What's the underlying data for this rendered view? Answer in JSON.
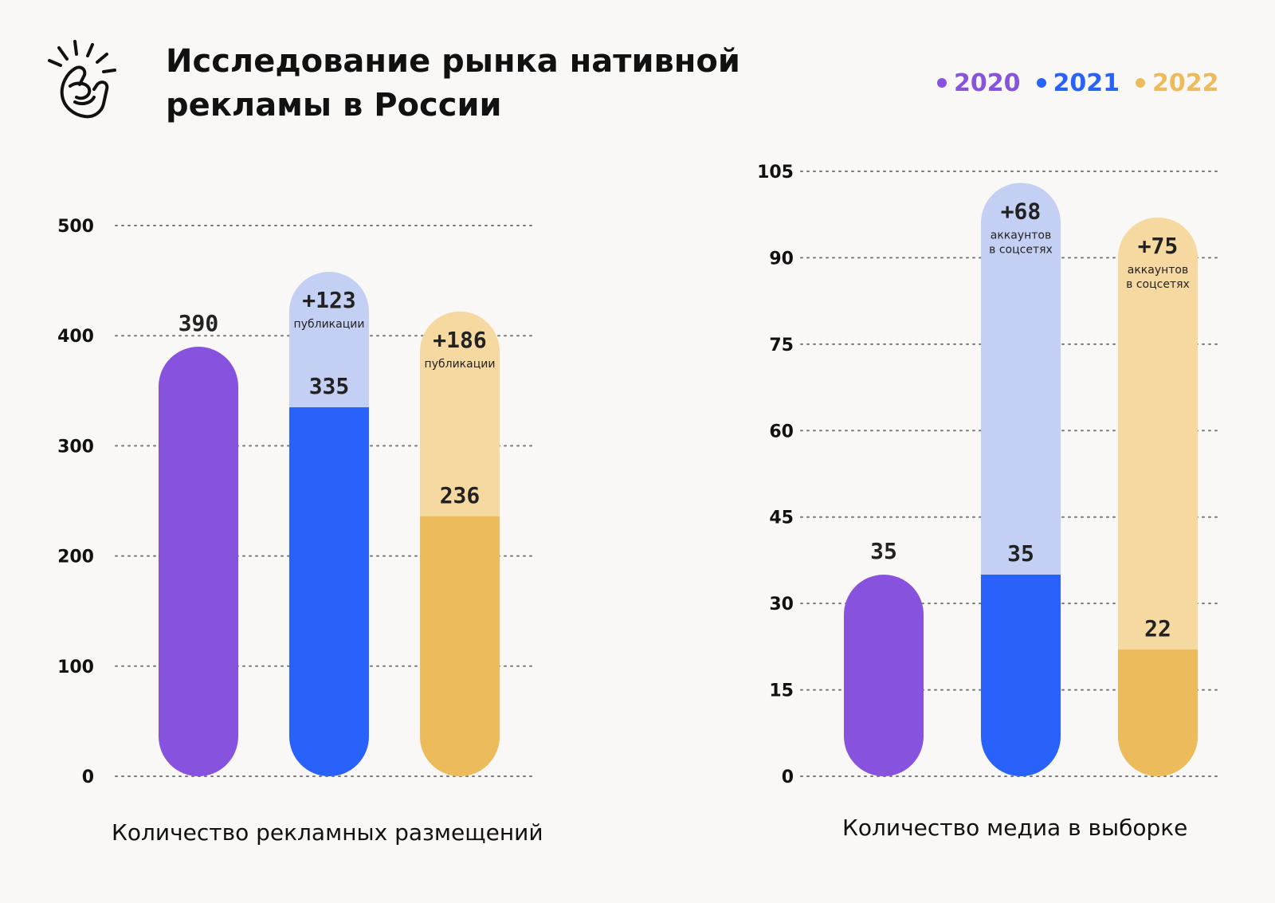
{
  "header": {
    "title_lines": [
      "Исследование рынка нативной",
      "рекламы в России"
    ],
    "logo_icon": "snapping-hand-icon"
  },
  "legend": [
    {
      "label": "2020",
      "color": "#8752de"
    },
    {
      "label": "2021",
      "color": "#2962fb"
    },
    {
      "label": "2022",
      "color": "#ebbb5c"
    }
  ],
  "chart_data": [
    {
      "type": "bar",
      "title": "Количество рекламных размещений",
      "categories": [
        "2020",
        "2021",
        "2022"
      ],
      "ylim": [
        0,
        500
      ],
      "yticks": [
        0,
        100,
        200,
        300,
        400,
        500
      ],
      "grid": true,
      "series": [
        {
          "values": [
            390,
            335,
            236
          ]
        },
        {
          "values": [
            0,
            123,
            186
          ]
        }
      ],
      "value_labels": [
        "390",
        "335",
        "236"
      ],
      "delta_labels": [
        "",
        "+123",
        "+186"
      ],
      "delta_notes": [
        "",
        "публикации",
        "публикации"
      ]
    },
    {
      "type": "bar",
      "title": "Количество медиа в выборке",
      "categories": [
        "2020",
        "2021",
        "2022"
      ],
      "ylim": [
        0,
        105
      ],
      "yticks": [
        0,
        15,
        30,
        45,
        60,
        75,
        90,
        105
      ],
      "grid": true,
      "series": [
        {
          "values": [
            35,
            35,
            22
          ]
        },
        {
          "values": [
            0,
            68,
            75
          ]
        }
      ],
      "value_labels": [
        "35",
        "35",
        "22"
      ],
      "delta_labels": [
        "",
        "+68",
        "+75"
      ],
      "delta_notes": [
        "",
        "аккаунтов в соцсетях",
        "аккаунтов в соцсетях"
      ]
    }
  ],
  "colors": {
    "dark": [
      "#8752de",
      "#2962fb",
      "#ebbb5c"
    ],
    "light": [
      "#8752de",
      "#c4d0f3",
      "#f6d9a0"
    ]
  }
}
